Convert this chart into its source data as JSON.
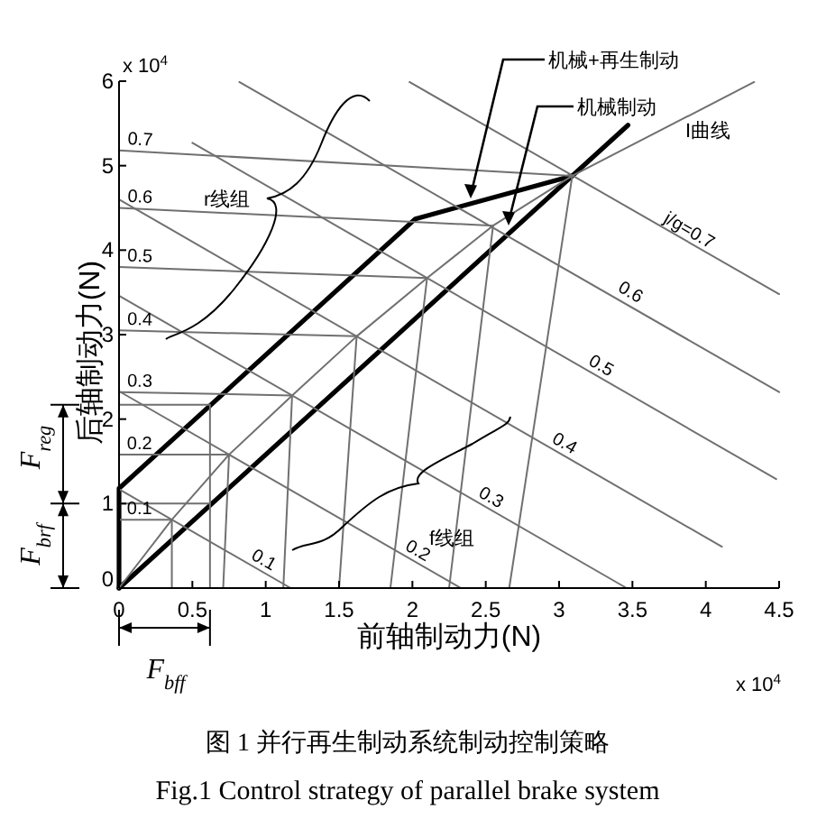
{
  "chart_data": {
    "type": "line",
    "title": "图 1 并行再生制动系统制动控制策略",
    "subtitle": "Fig.1 Control strategy of parallel brake system",
    "xlabel": "前轴制动力(N)",
    "ylabel": "后轴制动力(N)",
    "xlim": [
      0,
      4.5
    ],
    "ylim": [
      0,
      6
    ],
    "xticks": [
      0,
      0.5,
      1,
      1.5,
      2,
      2.5,
      3,
      3.5,
      4,
      4.5
    ],
    "yticks": [
      0,
      1,
      2,
      3,
      4,
      5,
      6
    ],
    "series": [
      {
        "name": "机械+再生制动",
        "color": "#000000",
        "x": [
          0,
          0,
          2.02,
          3.09
        ],
        "values": [
          0,
          1.18,
          4.37,
          4.88
        ]
      },
      {
        "name": "机械制动",
        "color": "#000000",
        "x": [
          0,
          3.47
        ],
        "values": [
          0,
          5.48
        ]
      },
      {
        "name": "I曲线",
        "color": "#707070",
        "x": [
          0,
          0.36,
          0.75,
          1.18,
          1.62,
          2.1,
          2.55,
          3.09,
          4.33
        ],
        "values": [
          0,
          0.81,
          1.58,
          2.28,
          2.98,
          3.67,
          4.29,
          4.88,
          5.99
        ]
      },
      {
        "color": "#707070",
        "x": [
          0,
          0.36
        ],
        "values": [
          0.81,
          0.81
        ]
      },
      {
        "color": "#707070",
        "x": [
          0,
          0.75
        ],
        "values": [
          1.58,
          1.58
        ]
      },
      {
        "color": "#707070",
        "x": [
          0,
          1.18
        ],
        "values": [
          2.32,
          2.28
        ]
      },
      {
        "color": "#707070",
        "x": [
          0,
          1.62
        ],
        "values": [
          3.05,
          2.98
        ]
      },
      {
        "color": "#707070",
        "x": [
          0,
          2.1
        ],
        "values": [
          3.8,
          3.67
        ]
      },
      {
        "color": "#707070",
        "x": [
          0,
          2.55
        ],
        "values": [
          4.5,
          4.29
        ]
      },
      {
        "color": "#707070",
        "x": [
          0,
          3.09
        ],
        "values": [
          5.18,
          4.88
        ]
      },
      {
        "color": "#707070",
        "x": [
          0.36,
          0.36
        ],
        "values": [
          0,
          0.81
        ]
      },
      {
        "color": "#707070",
        "x": [
          0.71,
          0.75
        ],
        "values": [
          0,
          1.58
        ]
      },
      {
        "color": "#707070",
        "x": [
          1.12,
          1.18
        ],
        "values": [
          0,
          2.28
        ]
      },
      {
        "color": "#707070",
        "x": [
          1.5,
          1.62
        ],
        "values": [
          0,
          2.98
        ]
      },
      {
        "color": "#707070",
        "x": [
          1.85,
          2.1
        ],
        "values": [
          0,
          3.67
        ]
      },
      {
        "color": "#707070",
        "x": [
          2.25,
          2.55
        ],
        "values": [
          0,
          4.29
        ]
      },
      {
        "color": "#707070",
        "x": [
          2.66,
          3.09
        ],
        "values": [
          0,
          4.88
        ]
      },
      {
        "color": "#707070",
        "x": [
          0,
          1.17
        ],
        "values": [
          1.17,
          0
        ]
      },
      {
        "color": "#707070",
        "x": [
          0,
          2.33
        ],
        "values": [
          2.33,
          0
        ]
      },
      {
        "color": "#707070",
        "x": [
          0,
          3.46
        ],
        "values": [
          3.46,
          0
        ]
      },
      {
        "color": "#707070",
        "x": [
          0,
          4.11
        ],
        "values": [
          4.6,
          0.49
        ]
      },
      {
        "color": "#707070",
        "x": [
          0.5,
          4.48
        ],
        "values": [
          5.27,
          1.29
        ]
      },
      {
        "color": "#707070",
        "x": [
          0.82,
          4.5
        ],
        "values": [
          5.99,
          2.32
        ]
      },
      {
        "color": "#707070",
        "x": [
          1.98,
          4.5
        ],
        "values": [
          5.99,
          3.48
        ]
      },
      {
        "color": "#707070",
        "x": [
          0,
          0.62,
          0.62
        ],
        "values": [
          2.17,
          2.17,
          0
        ]
      },
      {
        "color": "#707070",
        "x": [
          0,
          0.62
        ],
        "values": [
          1,
          1
        ]
      }
    ],
    "annotations": [
      "x 10$^{4}$",
      "x 10$^{4}$",
      "r线组",
      "f线组",
      "F$_{reg}$",
      "F$_{brf}$",
      "F$_{bff}$",
      {
        "text": "0.1",
        "x": 0.14,
        "y": 0.81
      },
      {
        "text": "0.2",
        "x": 0.14,
        "y": 1.58
      },
      {
        "text": "0.3",
        "x": 0.14,
        "y": 2.32
      },
      {
        "text": "0.4",
        "x": 0.14,
        "y": 3.05
      },
      {
        "text": "0.5",
        "x": 0.14,
        "y": 3.8
      },
      {
        "text": "0.6",
        "x": 0.14,
        "y": 4.5
      },
      {
        "text": "0.7",
        "x": 0.14,
        "y": 5.18
      },
      {
        "text": "0.1",
        "x": 0.95,
        "y": 0.22
      },
      {
        "text": "0.2",
        "x": 2.0,
        "y": 0.33
      },
      {
        "text": "0.3",
        "x": 2.5,
        "y": 0.96
      },
      {
        "text": "0.4",
        "x": 3.0,
        "y": 1.6
      },
      {
        "text": "0.5",
        "x": 3.25,
        "y": 2.52
      },
      {
        "text": "0.6",
        "x": 3.45,
        "y": 3.39
      },
      {
        "text": "j/g=0.7",
        "x": 3.85,
        "y": 4.12
      }
    ]
  }
}
